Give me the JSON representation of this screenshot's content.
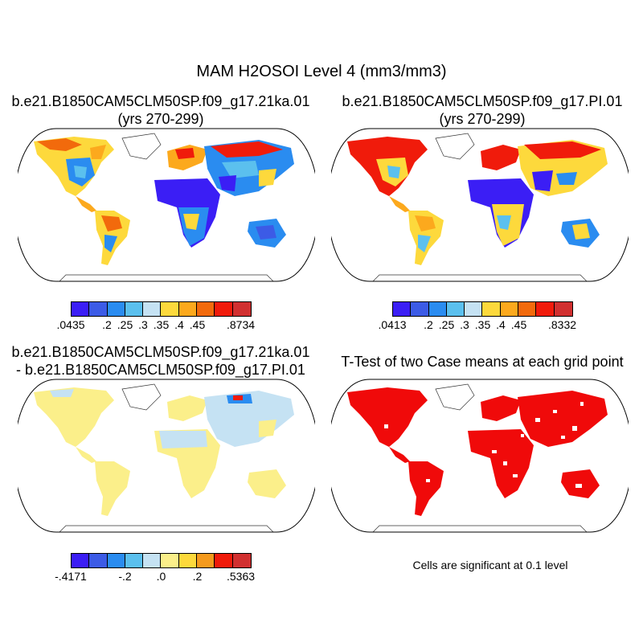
{
  "main_title": "MAM H2OSOI Level 4 (mm3/mm3)",
  "panels": {
    "top_left": {
      "title_line1": "b.e21.B1850CAM5CLM50SP.f09_g17.21ka.01",
      "title_line2": "(yrs 270-299)",
      "colorbar": {
        "colors": [
          "#3b1ef5",
          "#3c5be6",
          "#2a8cf0",
          "#5bc0ee",
          "#c5e2f3",
          "#fdd93c",
          "#fca91d",
          "#f26a0c",
          "#f01b0b",
          "#d13030"
        ],
        "labels": [
          ".0435",
          ".2",
          ".25",
          ".3",
          ".35",
          ".4",
          ".45",
          ".8734"
        ]
      }
    },
    "top_right": {
      "title_line1": "b.e21.B1850CAM5CLM50SP.f09_g17.PI.01",
      "title_line2": "(yrs 270-299)",
      "colorbar": {
        "colors": [
          "#3b1ef5",
          "#3c5be6",
          "#2a8cf0",
          "#5bc0ee",
          "#c5e2f3",
          "#fdd93c",
          "#fca91d",
          "#f26a0c",
          "#f01b0b",
          "#d13030"
        ],
        "labels": [
          ".0413",
          ".2",
          ".25",
          ".3",
          ".35",
          ".4",
          ".45",
          ".8332"
        ]
      }
    },
    "bottom_left": {
      "title_line1": "b.e21.B1850CAM5CLM50SP.f09_g17.21ka.01",
      "title_line2": "- b.e21.B1850CAM5CLM50SP.f09_g17.PI.01",
      "colorbar": {
        "colors": [
          "#3b1ef5",
          "#3c5be6",
          "#2a8cf0",
          "#5bc0ee",
          "#c5e2f3",
          "#fbef8a",
          "#fdd93c",
          "#f59a1d",
          "#f01b0b",
          "#d13030"
        ],
        "labels": [
          "-.4171",
          "-.2",
          ".0",
          ".2",
          ".5363"
        ]
      }
    },
    "bottom_right": {
      "title_line1": "T-Test of two Case means at each grid point",
      "note": "Cells are significant at 0.1 level",
      "sig_color": "#f00a0a"
    }
  }
}
